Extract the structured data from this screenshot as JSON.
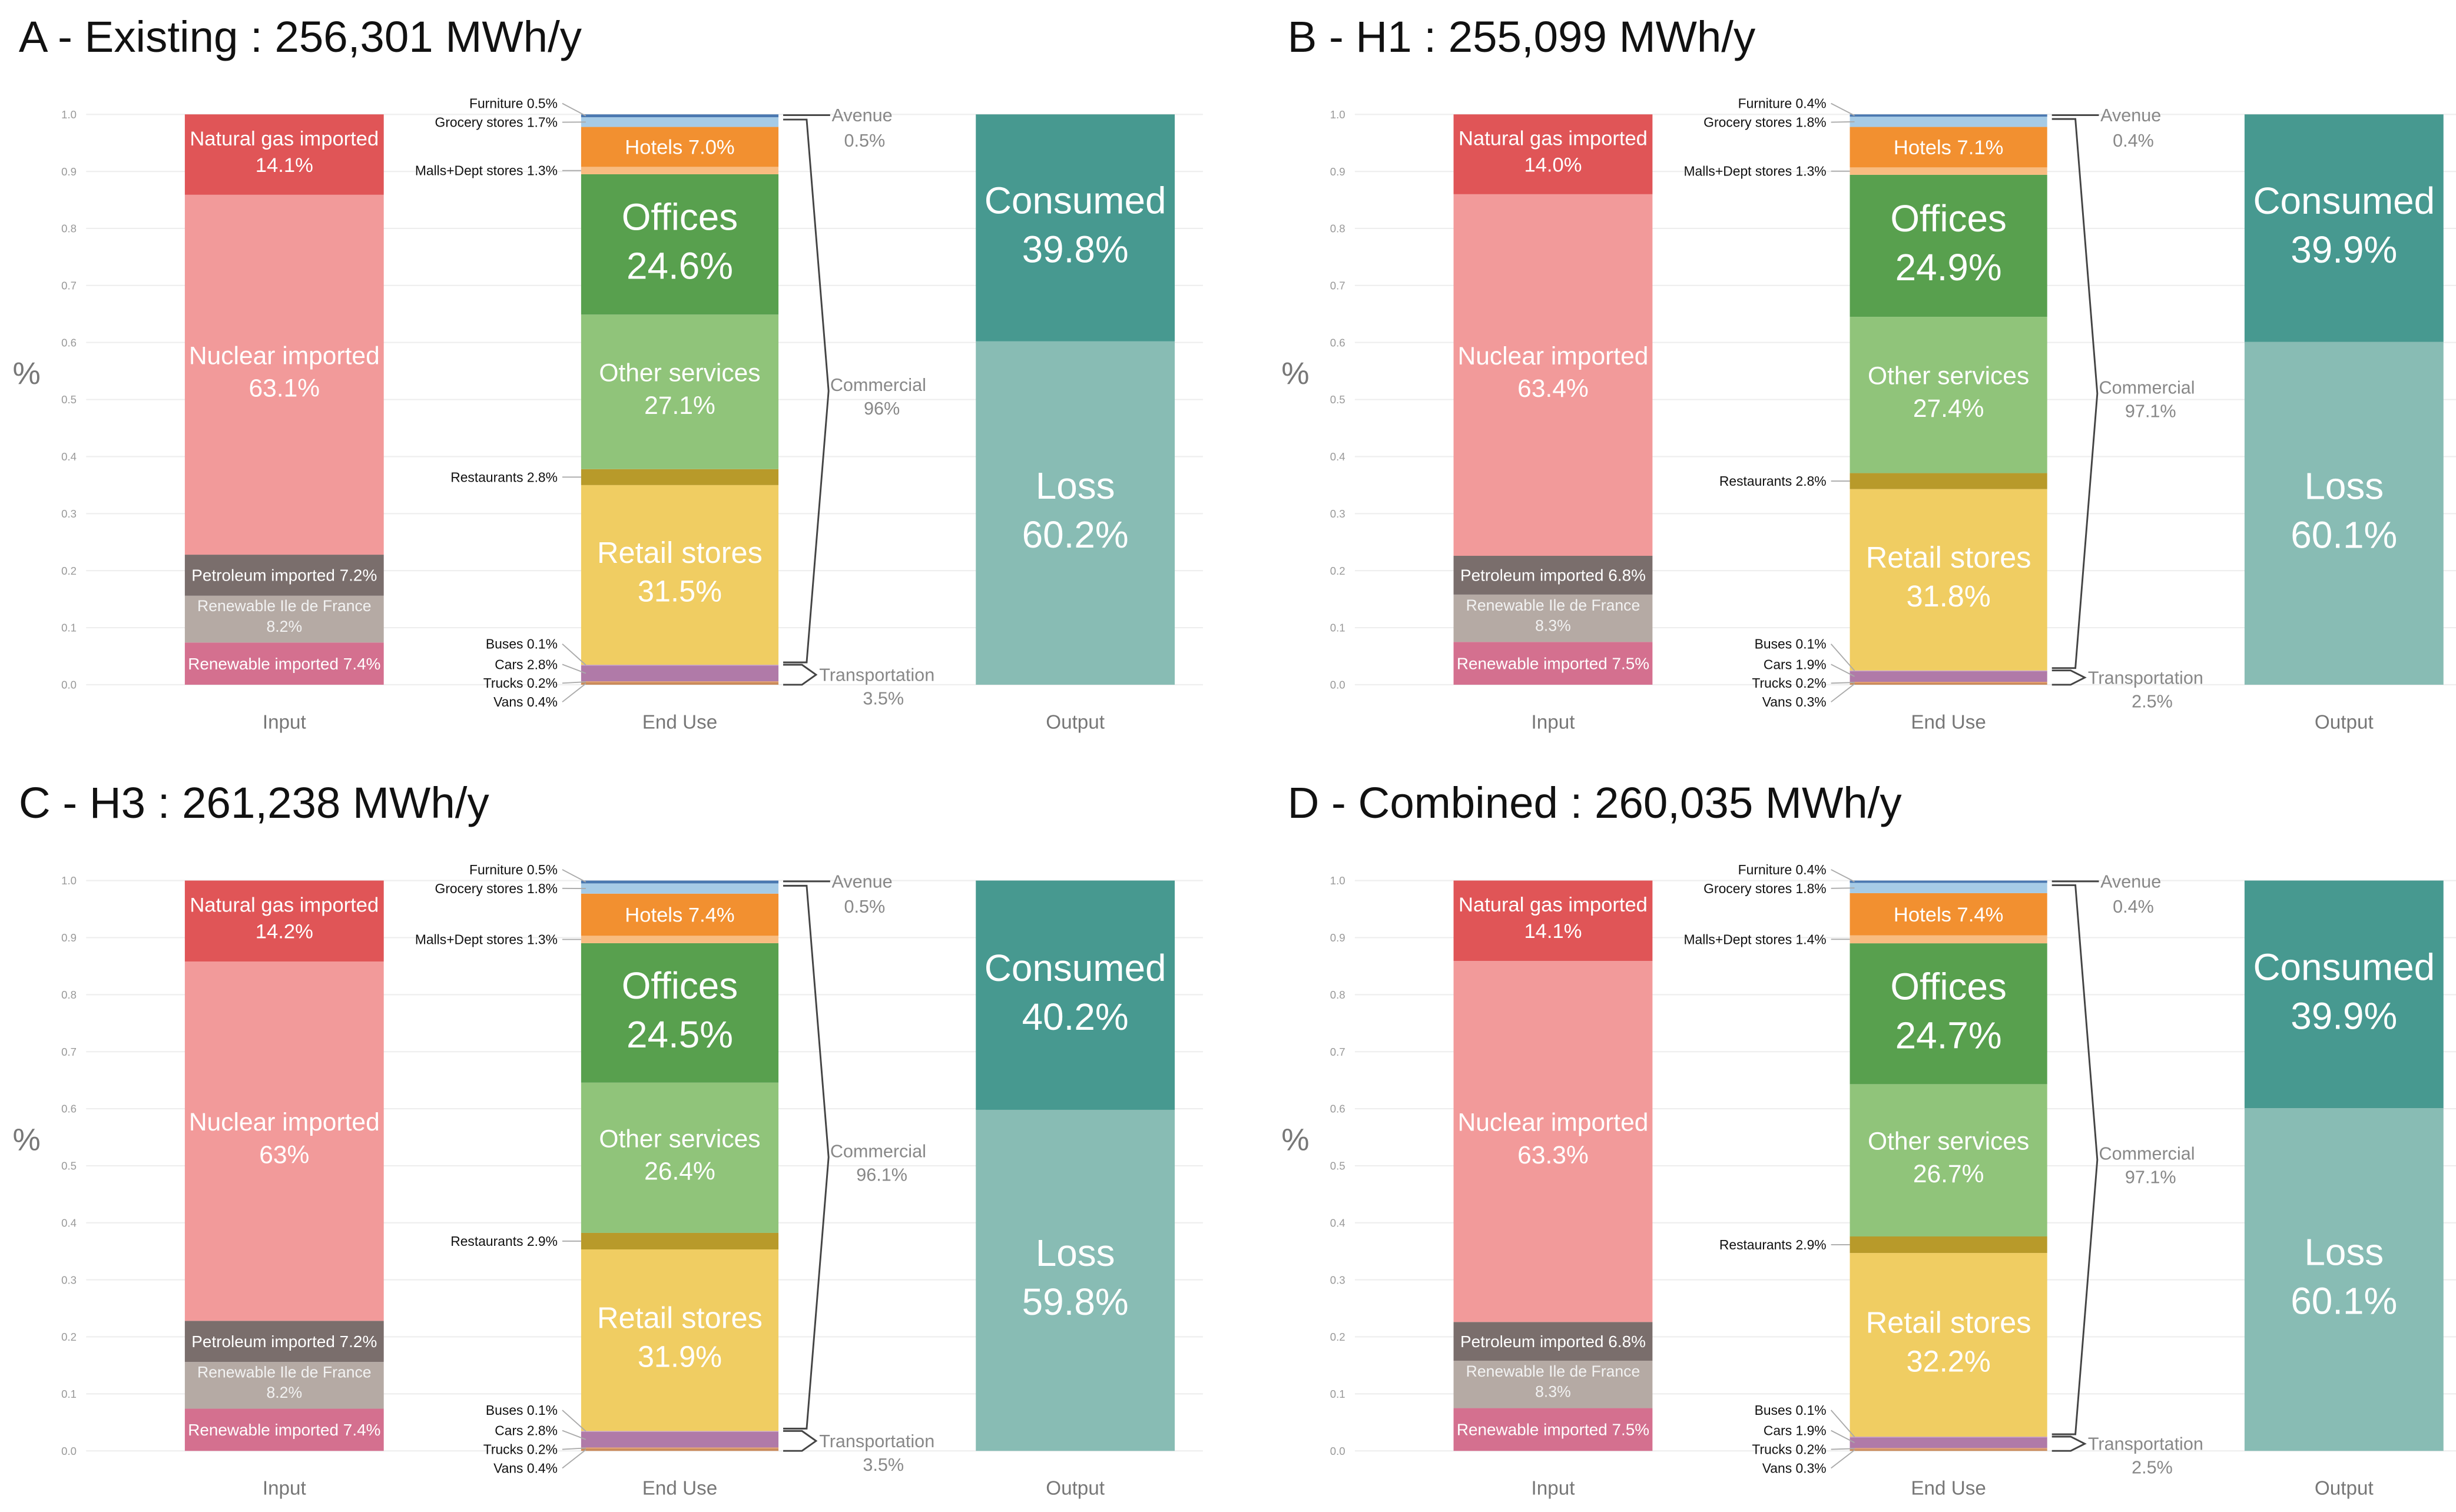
{
  "axis": {
    "y_label": "%",
    "y_ticks": [
      "0.0",
      "0.1",
      "0.2",
      "0.3",
      "0.4",
      "0.5",
      "0.6",
      "0.7",
      "0.8",
      "0.9",
      "1.0"
    ],
    "x_labels": [
      "Input",
      "End Use",
      "Output"
    ]
  },
  "colors": {
    "Renewable imported": "#d4708f",
    "Renewable Ile de France": "#b5aaa4",
    "Petroleum imported": "#7a6e6c",
    "Nuclear imported": "#f29a9a",
    "Natural gas imported": "#e05557",
    "Vans": "#c98a5a",
    "Trucks": "#e4a070",
    "Cars": "#b07aa8",
    "Buses": "#c9a6c9",
    "Retail stores": "#f0cd62",
    "Restaurants": "#b89a2a",
    "Other services": "#90c47a",
    "Offices": "#58a04e",
    "Malls+Dept stores": "#f8bc80",
    "Hotels": "#f29030",
    "Grocery stores": "#a6cbe6",
    "Furniture": "#4a78b0",
    "Loss": "#88bcb4",
    "Consumed": "#479990"
  },
  "chart_data": [
    {
      "type": "bar",
      "title": "A - Existing : 256,301 MWh/y",
      "stacked": true,
      "ylim": [
        0,
        1
      ],
      "input": [
        [
          "Renewable imported",
          "7.4%"
        ],
        [
          "Renewable Ile de France",
          "8.2%"
        ],
        [
          "Petroleum imported",
          "7.2%"
        ],
        [
          "Nuclear imported",
          "63.1%"
        ],
        [
          "Natural gas imported",
          "14.1%"
        ]
      ],
      "end_use": [
        [
          "Vans",
          "0.4%"
        ],
        [
          "Trucks",
          "0.2%"
        ],
        [
          "Cars",
          "2.8%"
        ],
        [
          "Buses",
          "0.1%"
        ],
        [
          "Retail stores",
          "31.5%"
        ],
        [
          "Restaurants",
          "2.8%"
        ],
        [
          "Other services",
          "27.1%"
        ],
        [
          "Offices",
          "24.6%"
        ],
        [
          "Malls+Dept stores",
          "1.3%"
        ],
        [
          "Hotels",
          "7.0%"
        ],
        [
          "Grocery stores",
          "1.7%"
        ],
        [
          "Furniture",
          "0.5%"
        ]
      ],
      "groups": [
        [
          "Transportation",
          "3.5%"
        ],
        [
          "Commercial",
          "96%"
        ],
        [
          "Avenue",
          "0.5%"
        ]
      ],
      "output": [
        [
          "Loss",
          "60.2%"
        ],
        [
          "Consumed",
          "39.8%"
        ]
      ]
    },
    {
      "type": "bar",
      "title": "B - H1 : 255,099 MWh/y",
      "stacked": true,
      "ylim": [
        0,
        1
      ],
      "input": [
        [
          "Renewable imported",
          "7.5%"
        ],
        [
          "Renewable Ile de France",
          "8.3%"
        ],
        [
          "Petroleum imported",
          "6.8%"
        ],
        [
          "Nuclear imported",
          "63.4%"
        ],
        [
          "Natural gas imported",
          "14.0%"
        ]
      ],
      "end_use": [
        [
          "Vans",
          "0.3%"
        ],
        [
          "Trucks",
          "0.2%"
        ],
        [
          "Cars",
          "1.9%"
        ],
        [
          "Buses",
          "0.1%"
        ],
        [
          "Retail stores",
          "31.8%"
        ],
        [
          "Restaurants",
          "2.8%"
        ],
        [
          "Other services",
          "27.4%"
        ],
        [
          "Offices",
          "24.9%"
        ],
        [
          "Malls+Dept stores",
          "1.3%"
        ],
        [
          "Hotels",
          "7.1%"
        ],
        [
          "Grocery stores",
          "1.8%"
        ],
        [
          "Furniture",
          "0.4%"
        ]
      ],
      "groups": [
        [
          "Transportation",
          "2.5%"
        ],
        [
          "Commercial",
          "97.1%"
        ],
        [
          "Avenue",
          "0.4%"
        ]
      ],
      "output": [
        [
          "Loss",
          "60.1%"
        ],
        [
          "Consumed",
          "39.9%"
        ]
      ]
    },
    {
      "type": "bar",
      "title": "C - H3 : 261,238 MWh/y",
      "stacked": true,
      "ylim": [
        0,
        1
      ],
      "input": [
        [
          "Renewable imported",
          "7.4%"
        ],
        [
          "Renewable Ile de France",
          "8.2%"
        ],
        [
          "Petroleum imported",
          "7.2%"
        ],
        [
          "Nuclear imported",
          "63%"
        ],
        [
          "Natural gas imported",
          "14.2%"
        ]
      ],
      "end_use": [
        [
          "Vans",
          "0.4%"
        ],
        [
          "Trucks",
          "0.2%"
        ],
        [
          "Cars",
          "2.8%"
        ],
        [
          "Buses",
          "0.1%"
        ],
        [
          "Retail stores",
          "31.9%"
        ],
        [
          "Restaurants",
          "2.9%"
        ],
        [
          "Other services",
          "26.4%"
        ],
        [
          "Offices",
          "24.5%"
        ],
        [
          "Malls+Dept stores",
          "1.3%"
        ],
        [
          "Hotels",
          "7.4%"
        ],
        [
          "Grocery stores",
          "1.8%"
        ],
        [
          "Furniture",
          "0.5%"
        ]
      ],
      "groups": [
        [
          "Transportation",
          "3.5%"
        ],
        [
          "Commercial",
          "96.1%"
        ],
        [
          "Avenue",
          "0.5%"
        ]
      ],
      "output": [
        [
          "Loss",
          "59.8%"
        ],
        [
          "Consumed",
          "40.2%"
        ]
      ]
    },
    {
      "type": "bar",
      "title": "D - Combined : 260,035 MWh/y",
      "stacked": true,
      "ylim": [
        0,
        1
      ],
      "input": [
        [
          "Renewable imported",
          "7.5%"
        ],
        [
          "Renewable Ile de France",
          "8.3%"
        ],
        [
          "Petroleum imported",
          "6.8%"
        ],
        [
          "Nuclear imported",
          "63.3%"
        ],
        [
          "Natural gas imported",
          "14.1%"
        ]
      ],
      "end_use": [
        [
          "Vans",
          "0.3%"
        ],
        [
          "Trucks",
          "0.2%"
        ],
        [
          "Cars",
          "1.9%"
        ],
        [
          "Buses",
          "0.1%"
        ],
        [
          "Retail stores",
          "32.2%"
        ],
        [
          "Restaurants",
          "2.9%"
        ],
        [
          "Other services",
          "26.7%"
        ],
        [
          "Offices",
          "24.7%"
        ],
        [
          "Malls+Dept stores",
          "1.4%"
        ],
        [
          "Hotels",
          "7.4%"
        ],
        [
          "Grocery stores",
          "1.8%"
        ],
        [
          "Furniture",
          "0.4%"
        ]
      ],
      "groups": [
        [
          "Transportation",
          "2.5%"
        ],
        [
          "Commercial",
          "97.1%"
        ],
        [
          "Avenue",
          "0.4%"
        ]
      ],
      "output": [
        [
          "Loss",
          "60.1%"
        ],
        [
          "Consumed",
          "39.9%"
        ]
      ]
    }
  ]
}
